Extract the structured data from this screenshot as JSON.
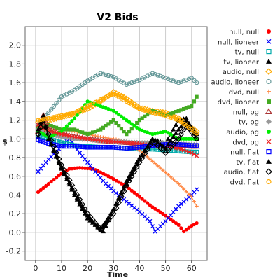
{
  "chart_data": {
    "type": "line",
    "title": "V2 Bids",
    "xlabel": "Time",
    "ylabel": "$",
    "xlim": [
      -4,
      66
    ],
    "ylim": [
      -0.3,
      2.2
    ],
    "x_ticks": [
      0,
      10,
      20,
      30,
      40,
      50,
      60
    ],
    "y_ticks": [
      -0.2,
      0.0,
      0.2,
      0.4,
      0.6,
      0.8,
      1.0,
      1.2,
      1.4,
      1.6,
      1.8,
      2.0
    ],
    "grid": true,
    "legend_position": "right",
    "series": [
      {
        "name": "null, null",
        "color": "#ff0000",
        "marker": "filled-circle",
        "points": [
          [
            1,
            0.43
          ],
          [
            5,
            0.52
          ],
          [
            10,
            0.63
          ],
          [
            13,
            0.68
          ],
          [
            17,
            0.69
          ],
          [
            22,
            0.68
          ],
          [
            26,
            0.63
          ],
          [
            30,
            0.57
          ],
          [
            35,
            0.49
          ],
          [
            40,
            0.38
          ],
          [
            45,
            0.27
          ],
          [
            50,
            0.18
          ],
          [
            55,
            0.08
          ],
          [
            57,
            0.01
          ],
          [
            60,
            0.07
          ],
          [
            62,
            0.1
          ]
        ]
      },
      {
        "name": "null, lioneer",
        "color": "#0000ff",
        "marker": "x",
        "points": [
          [
            1,
            0.65
          ],
          [
            5,
            0.78
          ],
          [
            10,
            0.92
          ],
          [
            13,
            1.0
          ],
          [
            17,
            0.85
          ],
          [
            22,
            0.68
          ],
          [
            27,
            0.52
          ],
          [
            31,
            0.42
          ],
          [
            35,
            0.33
          ],
          [
            40,
            0.22
          ],
          [
            44,
            0.12
          ],
          [
            46,
            0.01
          ],
          [
            50,
            0.12
          ],
          [
            55,
            0.28
          ],
          [
            60,
            0.4
          ],
          [
            62,
            0.46
          ]
        ]
      },
      {
        "name": "tv, null",
        "color": "#00aaaa",
        "marker": "open-square",
        "points": [
          [
            1,
            1.05
          ],
          [
            5,
            1.0
          ],
          [
            10,
            0.96
          ],
          [
            15,
            0.93
          ],
          [
            20,
            0.92
          ],
          [
            25,
            0.91
          ],
          [
            30,
            0.91
          ],
          [
            35,
            0.9
          ],
          [
            40,
            0.89
          ],
          [
            45,
            0.89
          ],
          [
            50,
            0.88
          ],
          [
            55,
            0.87
          ],
          [
            60,
            0.86
          ],
          [
            62,
            0.86
          ]
        ]
      },
      {
        "name": "tv, lioneer",
        "color": "#000000",
        "marker": "filled-triangle",
        "points": [
          [
            1,
            1.02
          ],
          [
            3,
            1.25
          ],
          [
            5,
            1.0
          ],
          [
            10,
            0.68
          ],
          [
            15,
            0.4
          ],
          [
            20,
            0.15
          ],
          [
            26,
            0.01
          ],
          [
            30,
            0.25
          ],
          [
            35,
            0.55
          ],
          [
            40,
            0.8
          ],
          [
            45,
            1.0
          ],
          [
            50,
            0.95
          ],
          [
            55,
            1.2
          ],
          [
            58,
            1.22
          ],
          [
            62,
            1.0
          ]
        ]
      },
      {
        "name": "audio, null",
        "color": "#ffaa00",
        "marker": "open-diamond",
        "points": [
          [
            1,
            1.18
          ],
          [
            5,
            1.2
          ],
          [
            10,
            1.23
          ],
          [
            15,
            1.27
          ],
          [
            20,
            1.32
          ],
          [
            25,
            1.4
          ],
          [
            30,
            1.5
          ],
          [
            35,
            1.43
          ],
          [
            40,
            1.33
          ],
          [
            45,
            1.3
          ],
          [
            50,
            1.28
          ],
          [
            55,
            1.22
          ],
          [
            60,
            1.12
          ],
          [
            62,
            1.08
          ]
        ]
      },
      {
        "name": "audio, lioneer",
        "color": "#669999",
        "marker": "open-circle",
        "points": [
          [
            1,
            1.15
          ],
          [
            5,
            1.28
          ],
          [
            10,
            1.45
          ],
          [
            15,
            1.52
          ],
          [
            20,
            1.62
          ],
          [
            25,
            1.7
          ],
          [
            30,
            1.66
          ],
          [
            35,
            1.58
          ],
          [
            40,
            1.63
          ],
          [
            45,
            1.7
          ],
          [
            50,
            1.65
          ],
          [
            55,
            1.6
          ],
          [
            60,
            1.65
          ],
          [
            62,
            1.6
          ]
        ]
      },
      {
        "name": "dvd, null",
        "color": "#ff8844",
        "marker": "plus",
        "points": [
          [
            1,
            1.08
          ],
          [
            5,
            1.1
          ],
          [
            10,
            1.1
          ],
          [
            15,
            1.08
          ],
          [
            20,
            1.05
          ],
          [
            25,
            1.02
          ],
          [
            30,
            1.0
          ],
          [
            35,
            0.97
          ],
          [
            40,
            0.88
          ],
          [
            45,
            0.76
          ],
          [
            50,
            0.64
          ],
          [
            55,
            0.52
          ],
          [
            60,
            0.38
          ],
          [
            62,
            0.28
          ]
        ]
      },
      {
        "name": "dvd, lioneer",
        "color": "#44aa22",
        "marker": "filled-square",
        "points": [
          [
            1,
            1.12
          ],
          [
            5,
            1.15
          ],
          [
            10,
            1.1
          ],
          [
            15,
            1.1
          ],
          [
            20,
            1.05
          ],
          [
            25,
            1.1
          ],
          [
            30,
            1.2
          ],
          [
            35,
            1.05
          ],
          [
            40,
            1.2
          ],
          [
            45,
            1.3
          ],
          [
            50,
            1.25
          ],
          [
            55,
            1.3
          ],
          [
            60,
            1.35
          ],
          [
            62,
            1.45
          ]
        ]
      },
      {
        "name": "null, pg",
        "color": "#aa3333",
        "marker": "open-triangle",
        "points": [
          [
            1,
            1.08
          ],
          [
            3,
            1.25
          ],
          [
            5,
            1.1
          ],
          [
            10,
            1.05
          ],
          [
            15,
            1.02
          ],
          [
            20,
            1.0
          ],
          [
            25,
            0.98
          ],
          [
            30,
            0.97
          ],
          [
            35,
            0.96
          ],
          [
            40,
            0.95
          ],
          [
            45,
            0.95
          ],
          [
            50,
            0.94
          ],
          [
            55,
            0.93
          ],
          [
            60,
            0.92
          ],
          [
            62,
            0.92
          ]
        ]
      },
      {
        "name": "tv, pg",
        "color": "#999999",
        "marker": "filled-diamond",
        "points": [
          [
            1,
            1.1
          ],
          [
            5,
            1.05
          ],
          [
            10,
            1.02
          ],
          [
            15,
            1.0
          ],
          [
            20,
            0.99
          ],
          [
            25,
            0.98
          ],
          [
            30,
            0.97
          ],
          [
            35,
            0.97
          ],
          [
            40,
            0.96
          ],
          [
            45,
            0.96
          ],
          [
            50,
            0.95
          ],
          [
            55,
            0.95
          ],
          [
            60,
            0.94
          ],
          [
            62,
            0.94
          ]
        ]
      },
      {
        "name": "audio, pg",
        "color": "#00ee00",
        "marker": "filled-circle",
        "points": [
          [
            1,
            1.08
          ],
          [
            5,
            1.02
          ],
          [
            10,
            1.08
          ],
          [
            15,
            1.22
          ],
          [
            20,
            1.4
          ],
          [
            25,
            1.35
          ],
          [
            30,
            1.3
          ],
          [
            35,
            1.2
          ],
          [
            40,
            1.1
          ],
          [
            45,
            1.05
          ],
          [
            50,
            1.08
          ],
          [
            55,
            1.0
          ],
          [
            60,
            1.0
          ],
          [
            62,
            1.0
          ]
        ]
      },
      {
        "name": "dvd, pg",
        "color": "#ee2222",
        "marker": "x",
        "points": [
          [
            1,
            1.15
          ],
          [
            5,
            1.08
          ],
          [
            10,
            1.05
          ],
          [
            15,
            1.02
          ],
          [
            20,
            1.0
          ],
          [
            25,
            0.98
          ],
          [
            30,
            0.97
          ],
          [
            35,
            0.96
          ],
          [
            40,
            0.95
          ],
          [
            45,
            0.93
          ],
          [
            50,
            0.92
          ],
          [
            55,
            0.9
          ],
          [
            60,
            0.85
          ],
          [
            62,
            0.82
          ]
        ]
      },
      {
        "name": "null, flat",
        "color": "#0000ff",
        "marker": "open-square",
        "points": [
          [
            1,
            0.99
          ],
          [
            5,
            0.95
          ],
          [
            10,
            0.92
          ],
          [
            15,
            0.92
          ],
          [
            20,
            0.91
          ],
          [
            25,
            0.91
          ],
          [
            30,
            0.91
          ],
          [
            35,
            0.9
          ],
          [
            40,
            0.91
          ],
          [
            45,
            0.93
          ],
          [
            50,
            0.94
          ],
          [
            55,
            0.94
          ],
          [
            60,
            0.93
          ],
          [
            62,
            0.93
          ]
        ]
      },
      {
        "name": "tv, flat",
        "color": "#000000",
        "marker": "filled-triangle",
        "points": [
          [
            1,
            1.1
          ],
          [
            3,
            1.25
          ],
          [
            5,
            1.0
          ],
          [
            10,
            0.7
          ],
          [
            15,
            0.42
          ],
          [
            20,
            0.18
          ],
          [
            25,
            0.02
          ],
          [
            30,
            0.25
          ],
          [
            35,
            0.52
          ],
          [
            40,
            0.78
          ],
          [
            45,
            1.0
          ],
          [
            50,
            0.9
          ],
          [
            55,
            1.1
          ],
          [
            58,
            1.2
          ],
          [
            62,
            1.05
          ]
        ]
      },
      {
        "name": "audio, flat",
        "color": "#000000",
        "marker": "open-diamond",
        "points": [
          [
            1,
            1.05
          ],
          [
            3,
            1.2
          ],
          [
            5,
            1.05
          ],
          [
            10,
            0.72
          ],
          [
            15,
            0.45
          ],
          [
            20,
            0.2
          ],
          [
            25,
            0.03
          ],
          [
            30,
            0.2
          ],
          [
            35,
            0.5
          ],
          [
            40,
            0.75
          ],
          [
            45,
            0.98
          ],
          [
            50,
            0.85
          ],
          [
            55,
            1.0
          ],
          [
            58,
            1.15
          ],
          [
            62,
            1.0
          ]
        ]
      },
      {
        "name": "dvd, flat",
        "color": "#ffaa00",
        "marker": "open-circle",
        "points": [
          [
            1,
            1.2
          ],
          [
            5,
            1.22
          ],
          [
            10,
            1.25
          ],
          [
            15,
            1.28
          ],
          [
            20,
            1.35
          ],
          [
            25,
            1.42
          ],
          [
            30,
            1.48
          ],
          [
            35,
            1.4
          ],
          [
            40,
            1.32
          ],
          [
            45,
            1.28
          ],
          [
            50,
            1.25
          ],
          [
            55,
            1.2
          ],
          [
            60,
            1.1
          ],
          [
            62,
            1.06
          ]
        ]
      }
    ]
  }
}
